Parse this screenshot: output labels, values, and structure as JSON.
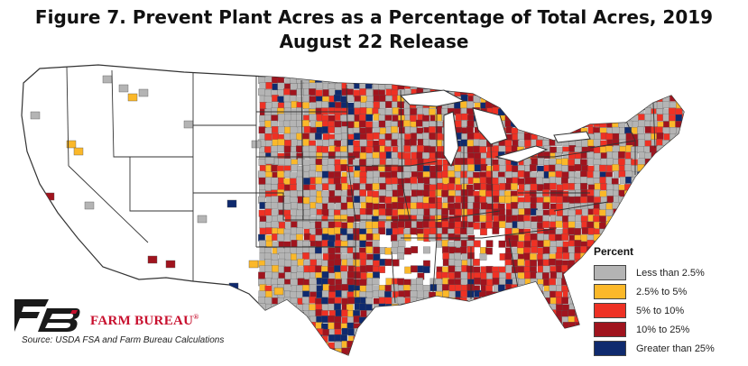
{
  "header": {
    "title_line1": "Figure 7. Prevent Plant Acres as a Percentage of Total Acres, 2019",
    "title_line2": "August 22 Release"
  },
  "legend": {
    "title": "Percent",
    "items": [
      {
        "label": "Less than 2.5%",
        "color": "#b4b4b4"
      },
      {
        "label": "2.5% to 5%",
        "color": "#fbb829"
      },
      {
        "label": "5% to 10%",
        "color": "#ee3124"
      },
      {
        "label": "10% to 25%",
        "color": "#a0141e"
      },
      {
        "label": "Greater than 25%",
        "color": "#0f2a6e"
      }
    ]
  },
  "branding": {
    "name": "FARM BUREAU",
    "registered_mark": "®",
    "logo_color": "#1a1a1a",
    "accent_color": "#c8102e"
  },
  "footer": {
    "source": "Source: USDA FSA and Farm Bureau Calculations"
  },
  "map": {
    "region": "contiguous-united-states",
    "unit": "county",
    "background_color": "#ffffff",
    "state_border_color": "#333333"
  }
}
